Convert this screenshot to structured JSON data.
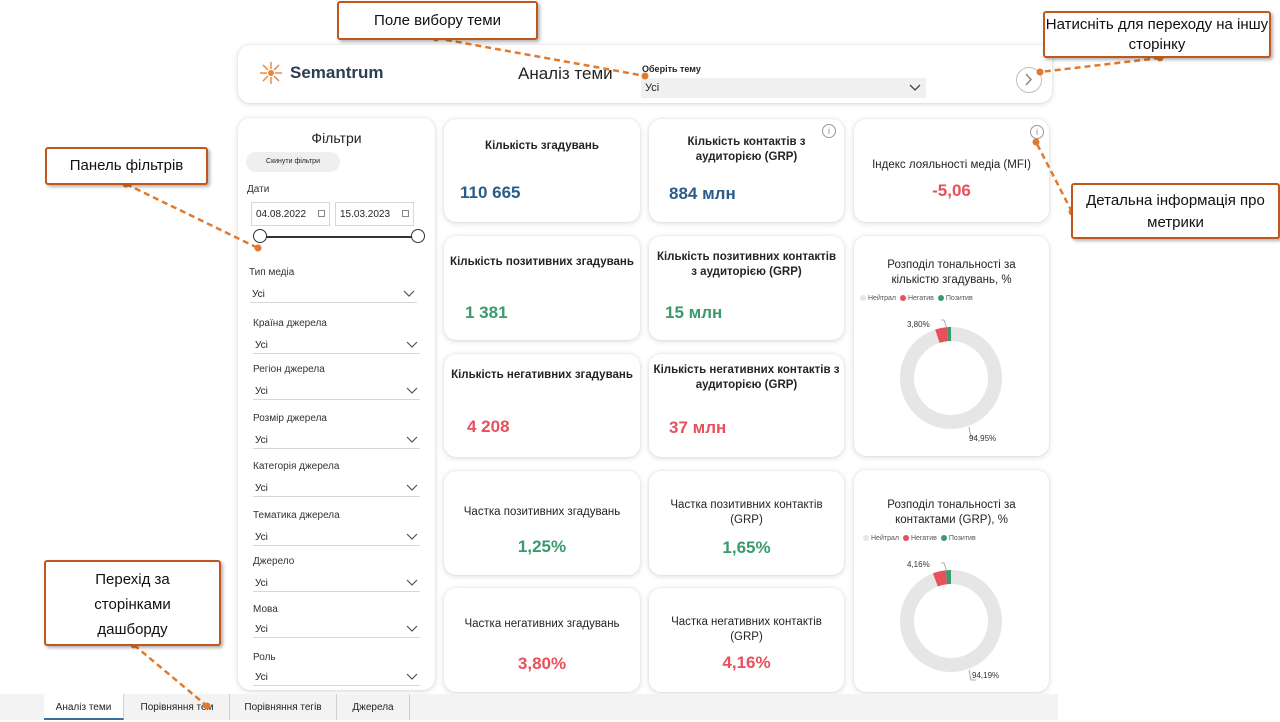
{
  "header": {
    "logo_text": "Semantrum",
    "title": "Аналіз теми",
    "topic_label": "Оберіть тему",
    "topic_value": "Усі"
  },
  "filters": {
    "title": "Фільтри",
    "reset_label": "Скинути фільтри",
    "dates_label": "Дати",
    "date_from": "04.08.2022",
    "date_to": "15.03.2023",
    "dropdowns": [
      {
        "label": "Тип медіа",
        "value": "Усі"
      },
      {
        "label": "Країна джерела",
        "value": "Усі"
      },
      {
        "label": "Регіон джерела",
        "value": "Усі"
      },
      {
        "label": "Розмір джерела",
        "value": "Усі"
      },
      {
        "label": "Категорія джерела",
        "value": "Усі"
      },
      {
        "label": "Тематика джерела",
        "value": "Усі"
      },
      {
        "label": "Джерело",
        "value": "Усі"
      },
      {
        "label": "Мова",
        "value": "Усі"
      },
      {
        "label": "Роль",
        "value": "Усі"
      }
    ]
  },
  "kpis": {
    "mentions": {
      "title": "Кількість згадувань",
      "value": "110 665"
    },
    "contacts": {
      "title": "Кількість контактів з аудиторією (GRP)",
      "value": "884 млн"
    },
    "mfi": {
      "title": "Індекс лояльності медіа (MFI)",
      "value": "-5,06"
    },
    "pos_mentions": {
      "title": "Кількість позитивних згадувань",
      "value": "1 381"
    },
    "pos_contacts": {
      "title": "Кількість позитивних контактів з аудиторією (GRP)",
      "value": "15 млн"
    },
    "neg_mentions": {
      "title": "Кількість негативних згадувань",
      "value": "4 208"
    },
    "neg_contacts": {
      "title": "Кількість негативних контактів з аудиторією (GRP)",
      "value": "37 млн"
    },
    "pos_share_mentions": {
      "title": "Частка позитивних згадувань",
      "value": "1,25%"
    },
    "pos_share_contacts": {
      "title": "Частка позитивних контактів (GRP)",
      "value": "1,65%"
    },
    "neg_share_mentions": {
      "title": "Частка негативних згадувань",
      "value": "3,80%"
    },
    "neg_share_contacts": {
      "title": "Частка негативних контактів (GRP)",
      "value": "4,16%"
    }
  },
  "colors": {
    "neutral": "#e6e6e6",
    "negative": "#e8505b",
    "positive": "#3a9a6c",
    "accent": "#c0581e"
  },
  "chart_data": [
    {
      "type": "pie",
      "title": "Розподіл тональності за кількістю згадувань, %",
      "legend": [
        "Нейтрал",
        "Негатив",
        "Позитив"
      ],
      "legend_position": "top-left",
      "series": [
        {
          "values": [
            94.95,
            3.8,
            1.25
          ]
        }
      ],
      "data_labels": [
        "94,95%",
        "3,80%"
      ]
    },
    {
      "type": "pie",
      "title": "Розподіл тональності за контактами (GRP), %",
      "legend": [
        "Нейтрал",
        "Негатив",
        "Позитив"
      ],
      "legend_position": "top-left",
      "series": [
        {
          "values": [
            94.19,
            4.16,
            1.65
          ]
        }
      ],
      "data_labels": [
        "94,19%",
        "4,16%"
      ]
    }
  ],
  "tabs": [
    "Аналіз теми",
    "Порівняння тем",
    "Порівняння тегів",
    "Джерела"
  ],
  "callouts": {
    "topic_select": "Поле вибору теми",
    "next_page": "Натисніть для переходу на іншу сторінку",
    "filters_panel": "Панель фільтрів",
    "metrics_info": "Детальна інформація про метрики",
    "page_nav": "Перехід за сторінками дашборду"
  }
}
